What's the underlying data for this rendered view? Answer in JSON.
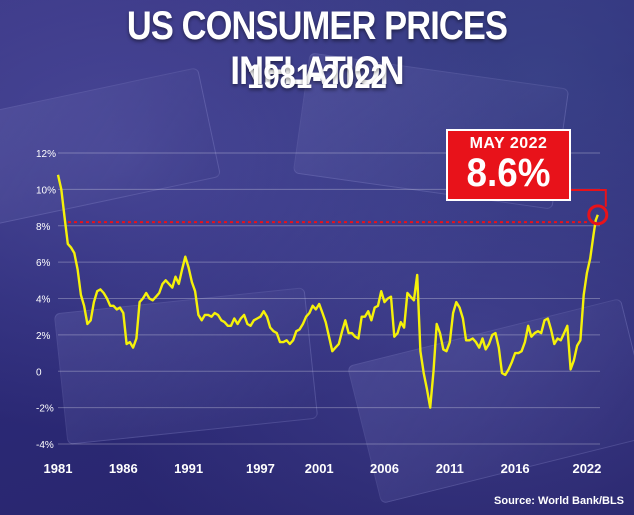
{
  "header": {
    "title": "US CONSUMER PRICES INFLATION",
    "subtitle": "1981-2022"
  },
  "callout": {
    "date": "MAY 2022",
    "value": "8.6%"
  },
  "source": "Source: World Bank/BLS",
  "colors": {
    "line": "#f5f10a",
    "callout": "#e8121a",
    "reference": "#e8121a"
  },
  "chart_data": {
    "type": "line",
    "title": "US CONSUMER PRICES INFLATION",
    "subtitle": "1981-2022",
    "xlabel": "",
    "ylabel": "",
    "y_ticks": [
      "12%",
      "10%",
      "8%",
      "6%",
      "4%",
      "2%",
      "0",
      "-2%",
      "-4%"
    ],
    "y_tick_values": [
      12,
      10,
      8,
      6,
      4,
      2,
      0,
      -2,
      -4
    ],
    "x_ticks": [
      "1981",
      "1986",
      "1991",
      "1997",
      "2001",
      "2006",
      "2011",
      "2016",
      "2022"
    ],
    "x_tick_values": [
      1981.0,
      1986.0,
      1991.0,
      1996.5,
      2001.0,
      2006.0,
      2011.0,
      2016.0,
      2021.5
    ],
    "xlim": [
      1981.0,
      2022.5
    ],
    "ylim": [
      -4,
      12
    ],
    "grid": "horizontal",
    "reference_line": {
      "y": 8.2
    },
    "series": [
      {
        "x": [
          1981.0,
          1981.25,
          1981.5,
          1981.75,
          1982.0,
          1982.25,
          1982.5,
          1982.75,
          1983.0,
          1983.25,
          1983.5,
          1983.75,
          1984.0,
          1984.25,
          1984.5,
          1984.75,
          1985.0,
          1985.25,
          1985.5,
          1985.75,
          1986.0,
          1986.25,
          1986.5,
          1986.75,
          1987.0,
          1987.25,
          1987.5,
          1987.75,
          1988.0,
          1988.25,
          1988.5,
          1988.75,
          1989.0,
          1989.25,
          1989.5,
          1989.75,
          1990.0,
          1990.25,
          1990.5,
          1990.75,
          1991.0,
          1991.25,
          1991.5,
          1991.75,
          1992.0,
          1992.25,
          1992.5,
          1992.75,
          1993.0,
          1993.25,
          1993.5,
          1993.75,
          1994.0,
          1994.25,
          1994.5,
          1994.75,
          1995.0,
          1995.25,
          1995.5,
          1995.75,
          1996.0,
          1996.25,
          1996.5,
          1996.75,
          1997.0,
          1997.25,
          1997.5,
          1997.75,
          1998.0,
          1998.25,
          1998.5,
          1998.75,
          1999.0,
          1999.25,
          1999.5,
          1999.75,
          2000.0,
          2000.25,
          2000.5,
          2000.75,
          2001.0,
          2001.25,
          2001.5,
          2001.75,
          2002.0,
          2002.25,
          2002.5,
          2002.75,
          2003.0,
          2003.25,
          2003.5,
          2003.75,
          2004.0,
          2004.25,
          2004.5,
          2004.75,
          2005.0,
          2005.25,
          2005.5,
          2005.75,
          2006.0,
          2006.25,
          2006.5,
          2006.75,
          2007.0,
          2007.25,
          2007.5,
          2007.75,
          2008.0,
          2008.25,
          2008.5,
          2008.75,
          2009.0,
          2009.25,
          2009.5,
          2009.75,
          2010.0,
          2010.25,
          2010.5,
          2010.75,
          2011.0,
          2011.25,
          2011.5,
          2011.75,
          2012.0,
          2012.25,
          2012.5,
          2012.75,
          2013.0,
          2013.25,
          2013.5,
          2013.75,
          2014.0,
          2014.25,
          2014.5,
          2014.75,
          2015.0,
          2015.25,
          2015.5,
          2015.75,
          2016.0,
          2016.25,
          2016.5,
          2016.75,
          2017.0,
          2017.25,
          2017.5,
          2017.75,
          2018.0,
          2018.25,
          2018.5,
          2018.75,
          2019.0,
          2019.25,
          2019.5,
          2019.75,
          2020.0,
          2020.25,
          2020.5,
          2020.75,
          2021.0,
          2021.25,
          2021.5,
          2021.75,
          2022.0,
          2022.17,
          2022.33
        ],
        "values": [
          10.8,
          10.0,
          8.5,
          7.0,
          6.8,
          6.5,
          5.6,
          4.2,
          3.6,
          2.6,
          2.8,
          3.8,
          4.4,
          4.5,
          4.3,
          4.0,
          3.6,
          3.6,
          3.4,
          3.5,
          3.2,
          1.5,
          1.6,
          1.3,
          1.8,
          3.8,
          4.0,
          4.3,
          4.0,
          3.9,
          4.1,
          4.3,
          4.8,
          5.0,
          4.8,
          4.6,
          5.2,
          4.8,
          5.6,
          6.3,
          5.7,
          4.9,
          4.4,
          3.1,
          2.8,
          3.1,
          3.1,
          3.0,
          3.2,
          3.1,
          2.8,
          2.7,
          2.5,
          2.5,
          2.9,
          2.6,
          2.9,
          3.1,
          2.6,
          2.5,
          2.8,
          2.9,
          3.0,
          3.3,
          3.0,
          2.4,
          2.2,
          2.1,
          1.6,
          1.6,
          1.7,
          1.5,
          1.7,
          2.2,
          2.3,
          2.6,
          3.0,
          3.2,
          3.6,
          3.4,
          3.7,
          3.2,
          2.7,
          1.9,
          1.1,
          1.3,
          1.5,
          2.2,
          2.8,
          2.1,
          2.1,
          1.9,
          1.8,
          3.0,
          3.0,
          3.3,
          2.8,
          3.5,
          3.6,
          4.4,
          3.8,
          4.0,
          4.1,
          1.9,
          2.1,
          2.7,
          2.4,
          4.3,
          4.1,
          3.9,
          5.3,
          1.1,
          -0.1,
          -1.0,
          -2.0,
          0.0,
          2.6,
          2.1,
          1.2,
          1.1,
          1.6,
          3.2,
          3.8,
          3.5,
          2.9,
          1.7,
          1.7,
          1.8,
          1.6,
          1.3,
          1.8,
          1.2,
          1.5,
          2.0,
          2.1,
          1.3,
          -0.1,
          -0.2,
          0.1,
          0.5,
          1.0,
          1.0,
          1.1,
          1.6,
          2.5,
          1.9,
          2.1,
          2.2,
          2.1,
          2.8,
          2.9,
          2.3,
          1.5,
          1.8,
          1.7,
          2.1,
          2.5,
          0.1,
          0.6,
          1.4,
          1.7,
          4.2,
          5.4,
          6.2,
          7.5,
          8.3,
          8.6
        ]
      }
    ],
    "highlight": {
      "x": 2022.33,
      "y": 8.6
    }
  }
}
